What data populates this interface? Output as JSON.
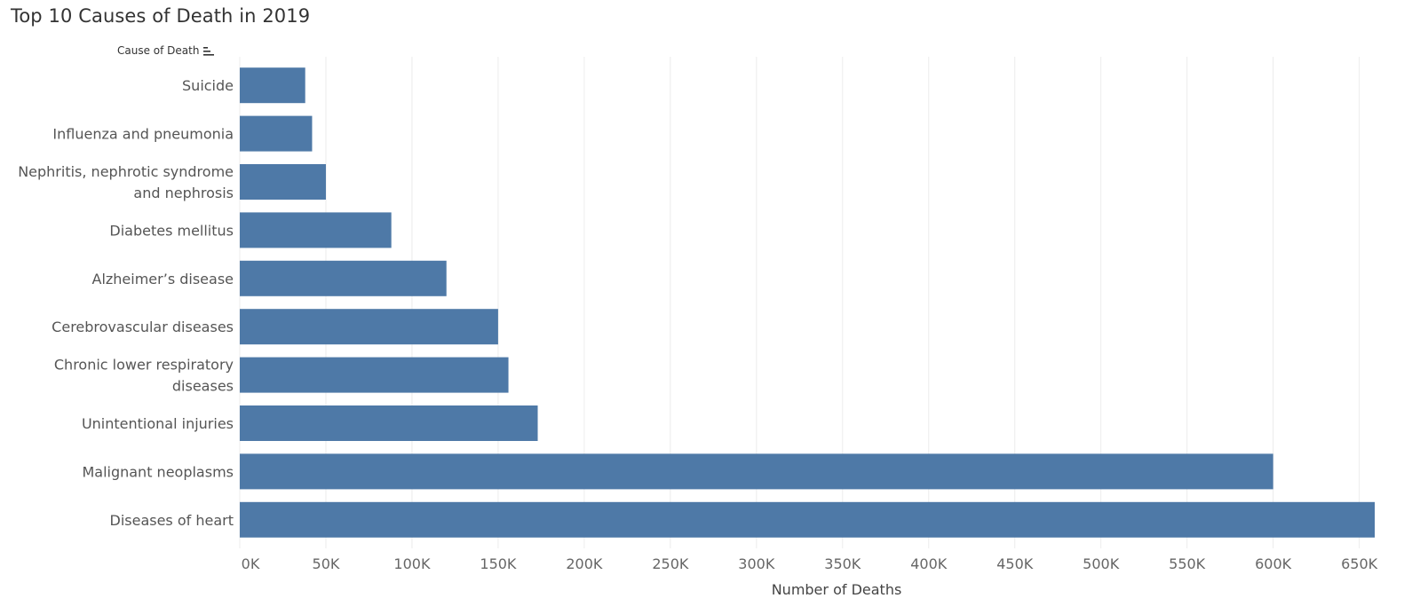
{
  "title": "Top 10 Causes of Death in 2019",
  "field_header": "Cause of Death",
  "icons": {
    "sort": "sort-descending-icon"
  },
  "colors": {
    "bar": "#4e79a7",
    "grid": "#ececec"
  },
  "chart_data": {
    "type": "bar",
    "orientation": "horizontal",
    "title": "Top 10 Causes of Death in 2019",
    "xlabel": "Number of Deaths",
    "ylabel": "Cause of Death",
    "xlim": [
      0,
      660000
    ],
    "grid": true,
    "categories": [
      "Suicide",
      "Influenza and pneumonia",
      "Nephritis, nephrotic syndrome and nephrosis",
      "Diabetes mellitus",
      "Alzheimer’s disease",
      "Cerebrovascular diseases",
      "Chronic lower respiratory diseases",
      "Unintentional injuries",
      "Malignant neoplasms",
      "Diseases of heart"
    ],
    "category_lines": [
      [
        "Suicide"
      ],
      [
        "Influenza and pneumonia"
      ],
      [
        "Nephritis, nephrotic syndrome",
        "and nephrosis"
      ],
      [
        "Diabetes mellitus"
      ],
      [
        "Alzheimer’s disease"
      ],
      [
        "Cerebrovascular diseases"
      ],
      [
        "Chronic lower respiratory",
        "diseases"
      ],
      [
        "Unintentional injuries"
      ],
      [
        "Malignant neoplasms"
      ],
      [
        "Diseases of heart"
      ]
    ],
    "values": [
      38000,
      42000,
      50000,
      88000,
      120000,
      150000,
      156000,
      173000,
      600000,
      659000
    ],
    "ticks": [
      0,
      50000,
      100000,
      150000,
      200000,
      250000,
      300000,
      350000,
      400000,
      450000,
      500000,
      550000,
      600000,
      650000
    ],
    "tick_labels": [
      "0K",
      "50K",
      "100K",
      "150K",
      "200K",
      "250K",
      "300K",
      "350K",
      "400K",
      "450K",
      "500K",
      "550K",
      "600K",
      "650K"
    ]
  }
}
